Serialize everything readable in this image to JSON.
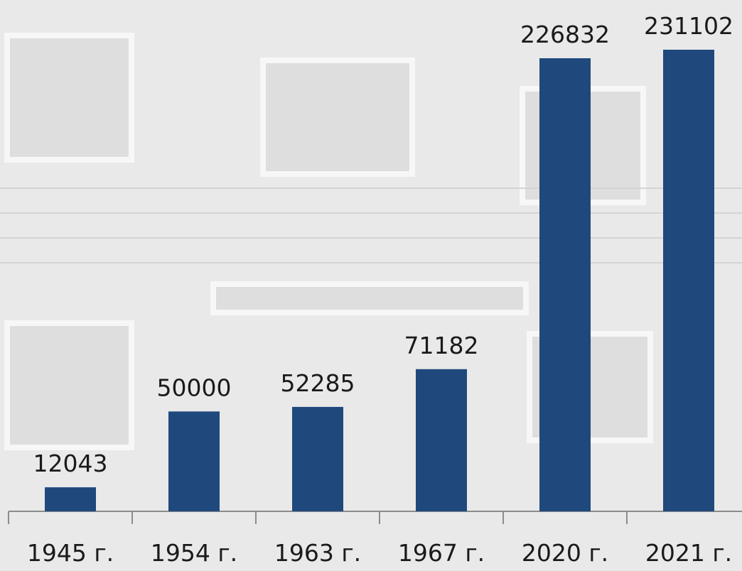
{
  "chart_data": {
    "type": "bar",
    "categories": [
      "1945 г.",
      "1954 г.",
      "1963 г.",
      "1967 г.",
      "2020 г.",
      "2021 г."
    ],
    "values": [
      12043,
      50000,
      52285,
      71182,
      226832,
      231102
    ],
    "color": "#1f497d"
  }
}
